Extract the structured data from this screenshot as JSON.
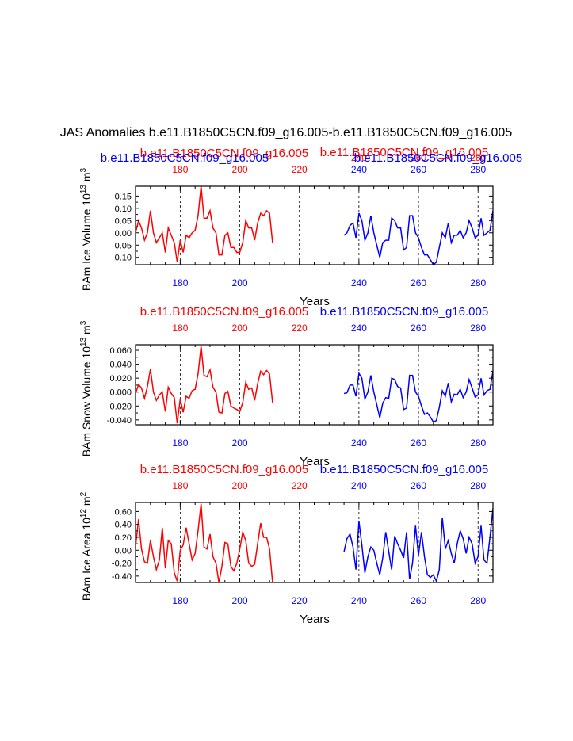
{
  "main_title": "JAS Anomalies b.e11.B1850C5CN.f09_g16.005-b.e11.B1850C5CN.f09_g16.005",
  "colors": {
    "case_a": "#ff0000",
    "case_b": "#0000ff",
    "axis": "#000000",
    "grid": "#000000"
  },
  "chart_data": [
    {
      "type": "line",
      "panel": "ice-volume",
      "ylabel": "BAm Ice Volume 10^13 m^3",
      "ylabel_parts": {
        "base": "BAm Ice Volume 10",
        "exp1": "13",
        "mid": " m",
        "exp2": "3"
      },
      "xlabel": "Years",
      "xlim": [
        165,
        285
      ],
      "ylim": [
        -0.13,
        0.19
      ],
      "yticks": [
        -0.1,
        -0.05,
        0.0,
        0.05,
        0.1,
        0.15
      ],
      "ytick_labels": [
        "-0.10",
        "-0.05",
        "0.00",
        "0.05",
        "0.10",
        "0.15"
      ],
      "xticks": [
        180,
        200,
        220,
        240,
        260,
        280
      ],
      "xtick_labels": [
        "180",
        "200",
        "220",
        "240",
        "260",
        "280"
      ],
      "bottom_tick_labels": [
        "180",
        "200",
        "240",
        "260",
        "280"
      ],
      "bottom_ticks": [
        180,
        200,
        240,
        260,
        280
      ],
      "vgrid": [
        180,
        200,
        220,
        240,
        260,
        280
      ],
      "top_labels": [
        {
          "text": "b.e11.B1850C5CN.f09_g16.005",
          "color": "#ff0000"
        },
        {
          "text": "b.e11.B1850C5CN.f09_g16.005",
          "color": "#0000ff"
        },
        {
          "text": "b.e11.B1850C5CN.f09_g16.005",
          "color": "#ff0000"
        },
        {
          "text": "b.e11.B1850C5CN.f09_g16.005",
          "color": "#0000ff"
        }
      ],
      "series": [
        {
          "name": "b.e11.B1850C5CN.f09_g16.005",
          "color": "#ff0000",
          "x_start": 165,
          "values": [
            0.0,
            0.05,
            0.02,
            -0.03,
            0.0,
            0.09,
            0.0,
            -0.04,
            -0.02,
            0.0,
            -0.08,
            0.02,
            -0.01,
            -0.04,
            -0.12,
            -0.03,
            -0.08,
            -0.01,
            -0.02,
            0.0,
            0.01,
            0.07,
            0.19,
            0.06,
            0.06,
            0.09,
            0.02,
            0.0,
            -0.09,
            -0.09,
            -0.01,
            0.0,
            -0.06,
            -0.06,
            -0.08,
            -0.08,
            -0.04,
            0.05,
            0.02,
            0.02,
            -0.03,
            0.04,
            0.08,
            0.07,
            0.09,
            0.08,
            -0.04
          ]
        },
        {
          "name": "b.e11.B1850C5CN.f09_g16.005",
          "color": "#0000ff",
          "x_start": 235,
          "values": [
            -0.01,
            0.0,
            0.03,
            0.04,
            -0.02,
            0.08,
            0.05,
            -0.03,
            0.0,
            0.07,
            0.0,
            -0.05,
            -0.1,
            -0.04,
            -0.03,
            -0.03,
            0.06,
            0.05,
            0.02,
            0.02,
            -0.07,
            -0.06,
            0.07,
            0.07,
            0.0,
            -0.02,
            -0.06,
            -0.09,
            -0.09,
            -0.11,
            -0.13,
            -0.12,
            -0.06,
            0.0,
            -0.02,
            0.04,
            -0.04,
            -0.01,
            -0.01,
            0.01,
            -0.02,
            0.0,
            0.05,
            0.02,
            -0.02,
            -0.01,
            0.06,
            -0.01,
            0.0,
            0.01,
            0.09
          ]
        }
      ]
    },
    {
      "type": "line",
      "panel": "snow-volume",
      "ylabel": "BAm Snow Volume 10^13 m^3",
      "ylabel_parts": {
        "base": "BAm Snow Volume 10",
        "exp1": "13",
        "mid": " m",
        "exp2": "3"
      },
      "xlabel": "Years",
      "xlim": [
        165,
        285
      ],
      "ylim": [
        -0.047,
        0.068
      ],
      "yticks": [
        -0.04,
        -0.02,
        0.0,
        0.02,
        0.04,
        0.06
      ],
      "ytick_labels": [
        "-0.040",
        "-0.020",
        "0.000",
        "0.020",
        "0.040",
        "0.060"
      ],
      "xticks": [
        180,
        200,
        220,
        240,
        260,
        280
      ],
      "xtick_labels": [
        "180",
        "200",
        "220",
        "240",
        "260",
        "280"
      ],
      "bottom_tick_labels": [
        "180",
        "200",
        "240",
        "260",
        "280"
      ],
      "bottom_ticks": [
        180,
        200,
        240,
        260,
        280
      ],
      "vgrid": [
        180,
        200,
        220,
        240,
        260,
        280
      ],
      "top_labels": [
        {
          "text": "b.e11.B1850C5CN.f09_g16.005",
          "color": "#ff0000"
        },
        {
          "text": "b.e11.B1850C5CN.f09_g16.005",
          "color": "#0000ff"
        }
      ],
      "series": [
        {
          "name": "b.e11.B1850C5CN.f09_g16.005",
          "color": "#ff0000",
          "x_start": 165,
          "values": [
            -0.002,
            0.011,
            0.006,
            -0.009,
            0.008,
            0.033,
            0.0,
            -0.012,
            -0.004,
            0.0,
            -0.028,
            0.007,
            -0.002,
            -0.008,
            -0.045,
            -0.01,
            -0.029,
            -0.006,
            -0.009,
            0.002,
            0.004,
            0.026,
            0.066,
            0.024,
            0.022,
            0.032,
            0.007,
            0.0,
            -0.029,
            -0.03,
            -0.002,
            0.001,
            -0.02,
            -0.023,
            -0.025,
            -0.028,
            -0.015,
            0.014,
            0.004,
            0.006,
            -0.012,
            0.012,
            0.03,
            0.025,
            0.031,
            0.026,
            -0.015
          ]
        },
        {
          "name": "b.e11.B1850C5CN.f09_g16.005",
          "color": "#0000ff",
          "x_start": 235,
          "values": [
            -0.002,
            -0.001,
            0.01,
            0.01,
            -0.006,
            0.027,
            0.02,
            -0.01,
            0.0,
            0.024,
            0.0,
            -0.018,
            -0.037,
            -0.016,
            -0.008,
            -0.009,
            0.02,
            0.018,
            0.008,
            0.006,
            -0.025,
            -0.023,
            0.024,
            0.024,
            0.0,
            -0.006,
            -0.02,
            -0.032,
            -0.03,
            -0.036,
            -0.043,
            -0.041,
            -0.022,
            0.002,
            -0.006,
            0.013,
            -0.014,
            -0.003,
            -0.004,
            0.004,
            -0.008,
            0.0,
            0.018,
            0.006,
            -0.007,
            -0.004,
            0.02,
            -0.004,
            0.002,
            0.004,
            0.03
          ]
        }
      ]
    },
    {
      "type": "line",
      "panel": "ice-area",
      "ylabel": "BAm Ice Area 10^12 m^2",
      "ylabel_parts": {
        "base": "BAm Ice Area 10",
        "exp1": "12",
        "mid": " m",
        "exp2": "2"
      },
      "xlabel": "Years",
      "xlim": [
        165,
        285
      ],
      "ylim": [
        -0.5,
        0.74
      ],
      "yticks": [
        -0.4,
        -0.2,
        0.0,
        0.2,
        0.4,
        0.6
      ],
      "ytick_labels": [
        "-0.40",
        "-0.20",
        "0.00",
        "0.20",
        "0.40",
        "0.60"
      ],
      "xticks": [
        180,
        200,
        220,
        240,
        260,
        280
      ],
      "xtick_labels": [
        "180",
        "200",
        "220",
        "240",
        "260",
        "280"
      ],
      "bottom_tick_labels": [
        "180",
        "200",
        "220",
        "240",
        "260",
        "280"
      ],
      "bottom_ticks": [
        180,
        200,
        220,
        240,
        260,
        280
      ],
      "vgrid": [
        180,
        200,
        220,
        240,
        260,
        280
      ],
      "top_labels": [
        {
          "text": "b.e11.B1850C5CN.f09_g16.005",
          "color": "#ff0000"
        },
        {
          "text": "b.e11.B1850C5CN.f09_g16.005",
          "color": "#0000ff"
        }
      ],
      "series": [
        {
          "name": "b.e11.B1850C5CN.f09_g16.005",
          "color": "#ff0000",
          "x_start": 165,
          "values": [
            0.05,
            0.48,
            0.02,
            -0.18,
            -0.2,
            0.15,
            -0.1,
            -0.3,
            -0.15,
            0.35,
            -0.28,
            0.15,
            0.1,
            -0.35,
            -0.48,
            0.0,
            0.08,
            0.35,
            0.1,
            -0.15,
            -0.05,
            0.3,
            0.72,
            0.05,
            0.02,
            0.25,
            -0.1,
            -0.2,
            -0.5,
            -0.25,
            0.12,
            0.1,
            -0.25,
            -0.32,
            -0.2,
            0.02,
            0.28,
            0.15,
            -0.2,
            -0.25,
            -0.22,
            0.1,
            0.42,
            0.2,
            0.2,
            0.02,
            -0.5
          ]
        },
        {
          "name": "b.e11.B1850C5CN.f09_g16.005",
          "color": "#0000ff",
          "x_start": 235,
          "values": [
            -0.02,
            0.18,
            0.25,
            0.05,
            -0.3,
            0.45,
            0.08,
            -0.35,
            -0.1,
            0.05,
            0.0,
            -0.2,
            -0.38,
            -0.12,
            0.28,
            -0.02,
            -0.3,
            0.22,
            0.1,
            0.0,
            -0.12,
            0.28,
            -0.45,
            -0.2,
            0.38,
            -0.08,
            0.28,
            -0.1,
            -0.38,
            -0.42,
            -0.38,
            -0.48,
            -0.3,
            0.5,
            0.02,
            0.15,
            -0.05,
            -0.2,
            0.1,
            0.3,
            0.18,
            -0.05,
            0.2,
            0.1,
            -0.2,
            -0.1,
            0.38,
            -0.15,
            -0.2,
            0.2,
            0.65
          ]
        }
      ]
    }
  ]
}
